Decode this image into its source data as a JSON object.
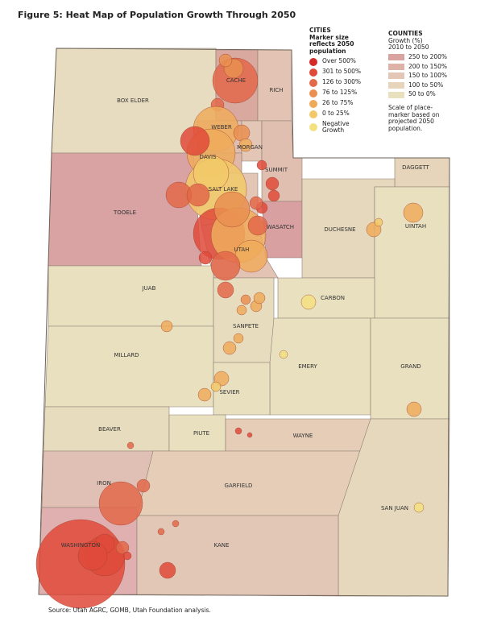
{
  "title": "Figure 5: Heat Map of Population Growth Through 2050",
  "cities_legend": {
    "heading": "CITIES",
    "subheading": "Marker size reflects 2050 population",
    "items": [
      {
        "label": "Over 500%",
        "color": "#d42a2a"
      },
      {
        "label": "301 to 500%",
        "color": "#df4a3a"
      },
      {
        "label": "126 to 300%",
        "color": "#e2694a"
      },
      {
        "label": "76 to 125%",
        "color": "#e98f50"
      },
      {
        "label": "26 to 75%",
        "color": "#efab5c"
      },
      {
        "label": "0 to 25%",
        "color": "#f2c96a"
      },
      {
        "label": "Negative Growth",
        "color": "#f3e180"
      }
    ]
  },
  "counties_legend": {
    "heading": "COUNTIES",
    "subheading": "Growth (%) 2010 to 2050",
    "items": [
      {
        "label": "250 to 200%",
        "color": "#d9a4a0"
      },
      {
        "label": "200 to 150%",
        "color": "#dfb2a8"
      },
      {
        "label": "150 to 100%",
        "color": "#e3c6b5"
      },
      {
        "label": "100 to 50%",
        "color": "#e6d5bb"
      },
      {
        "label": "50 to 0%",
        "color": "#e9e0c0"
      }
    ],
    "note": "Scale of place-marker based on projected 2050 population."
  },
  "counties": [
    "BOX ELDER",
    "CACHE",
    "RICH",
    "WEBER",
    "MORGAN",
    "DAVIS",
    "SUMMIT",
    "DAGGETT",
    "TOOELE",
    "SALT LAKE",
    "WASATCH",
    "DUCHESNE",
    "UINTAH",
    "UTAH",
    "JUAB",
    "CARBON",
    "SANPETE",
    "MILLARD",
    "EMERY",
    "GRAND",
    "SEVIER",
    "BEAVER",
    "PIUTE",
    "WAYNE",
    "IRON",
    "GARFIELD",
    "SAN JUAN",
    "WASHINGTON",
    "KANE"
  ],
  "source": "Source: Utah AGRC, GOMB, Utah Foundation analysis."
}
